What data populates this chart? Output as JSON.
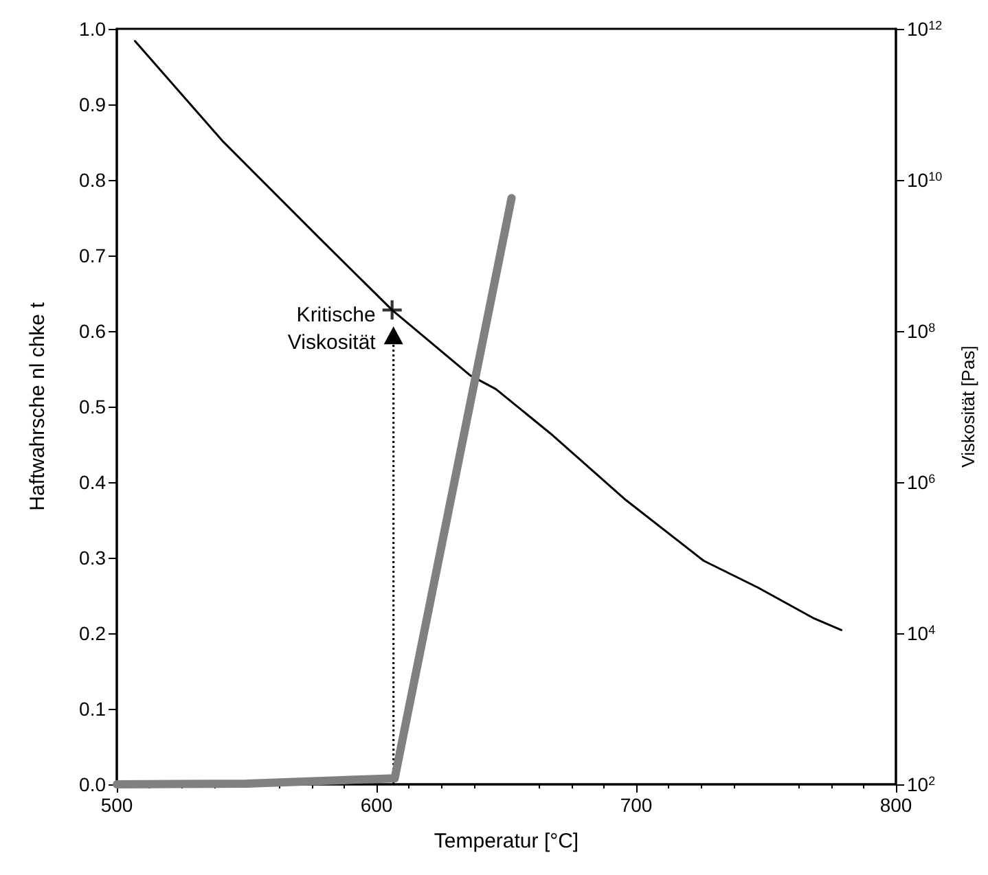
{
  "chart_data": {
    "type": "line",
    "xlabel": "Temperatur [°C]",
    "ylabel": "Haftwahrsche nl chke t",
    "y2label": "Viskosität [Pas]",
    "xlim": [
      500,
      800
    ],
    "xticks": [
      500,
      600,
      700,
      800
    ],
    "ylim": [
      0,
      1
    ],
    "yticks": [
      {
        "value": 0,
        "label": "0.0"
      },
      0.1,
      0.2,
      0.3,
      0.4,
      0.5,
      0.6,
      0.7,
      0.8,
      0.9,
      {
        "value": 1,
        "label": "1.0"
      }
    ],
    "y2lim": [
      100,
      1000000000000
    ],
    "y2ticks": [
      {
        "value": 100,
        "label": "10$^{2}$"
      },
      {
        "value": 10000,
        "label": "10$^{4}$"
      },
      {
        "value": 1000000,
        "label": "10$^{6}$"
      },
      {
        "value": 100000000,
        "label": "10$^{8}$"
      },
      {
        "value": 10000000000,
        "label": "10$^{10}$"
      },
      {
        "value": 1000000000000,
        "label": "10$^{12}$"
      }
    ],
    "log": "y2",
    "grid": false,
    "series": [
      {
        "axis": "y2",
        "color": "#000000",
        "marker": "none",
        "line_style": "solid",
        "x": [
          507,
          541,
          578,
          606,
          636,
          646,
          667,
          696,
          726,
          747,
          768,
          779
        ],
        "values": [
          690000000000,
          32000000000,
          1700000000,
          190000000,
          26000000,
          17000000,
          4400000,
          580000,
          91000,
          40000,
          16000,
          11000
        ]
      },
      {
        "axis": "y",
        "color": "#808080",
        "marker": "none",
        "line_style": "solid",
        "x": [
          500,
          550,
          607,
          652
        ],
        "values": [
          0.0,
          0.001,
          0.008,
          0.776
        ]
      },
      {
        "type": "scatter",
        "axis": "y2",
        "color": "#000000",
        "marker": "cross",
        "x": [
          606
        ],
        "values": [
          190000000
        ]
      }
    ],
    "annotations": [
      "Kritische Viskosität"
    ]
  }
}
